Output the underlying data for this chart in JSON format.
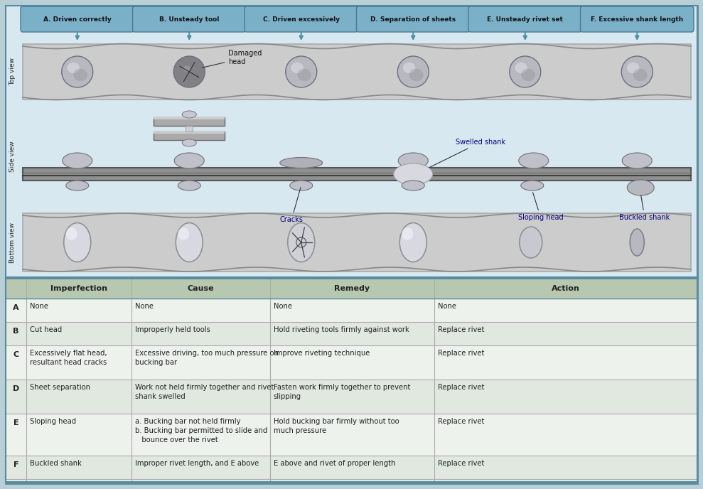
{
  "fig_width": 9.89,
  "fig_height": 6.88,
  "bg_color": "#b8cfd8",
  "outer_border_color": "#5a8a9f",
  "header_labels": [
    "A. Driven correctly",
    "B. Unsteady tool",
    "C. Driven excessively",
    "D. Separation of sheets",
    "E. Unsteady rivet set",
    "F. Excessive shank length"
  ],
  "header_bg": "#7ab0c8",
  "diagram_bg": "#d8e8f0",
  "table_header_bg": "#b8c8b0",
  "table_row_bg_odd": "#edf2ed",
  "table_row_bg_even": "#e0e8e0",
  "table_border": "#aaaaaa",
  "table_rows": [
    [
      "A",
      "None",
      "None",
      "None",
      "None"
    ],
    [
      "B",
      "Cut head",
      "Improperly held tools",
      "Hold riveting tools firmly against work",
      "Replace rivet"
    ],
    [
      "C",
      "Excessively flat head,\nresultant head cracks",
      "Excessive driving, too much pressure on\nbucking bar",
      "Improve riveting technique",
      "Replace rivet"
    ],
    [
      "D",
      "Sheet separation",
      "Work not held firmly together and rivet\nshank swelled",
      "Fasten work firmly together to prevent\nslipping",
      "Replace rivet"
    ],
    [
      "E",
      "Sloping head",
      "a. Bucking bar not held firmly\nb. Bucking bar permitted to slide and\n   bounce over the rivet",
      "Hold bucking bar firmly without too\nmuch pressure",
      "Replace rivet"
    ],
    [
      "F",
      "Buckled shank",
      "Improper rivet length, and E above",
      "E above and rivet of proper length",
      "Replace rivet"
    ]
  ]
}
